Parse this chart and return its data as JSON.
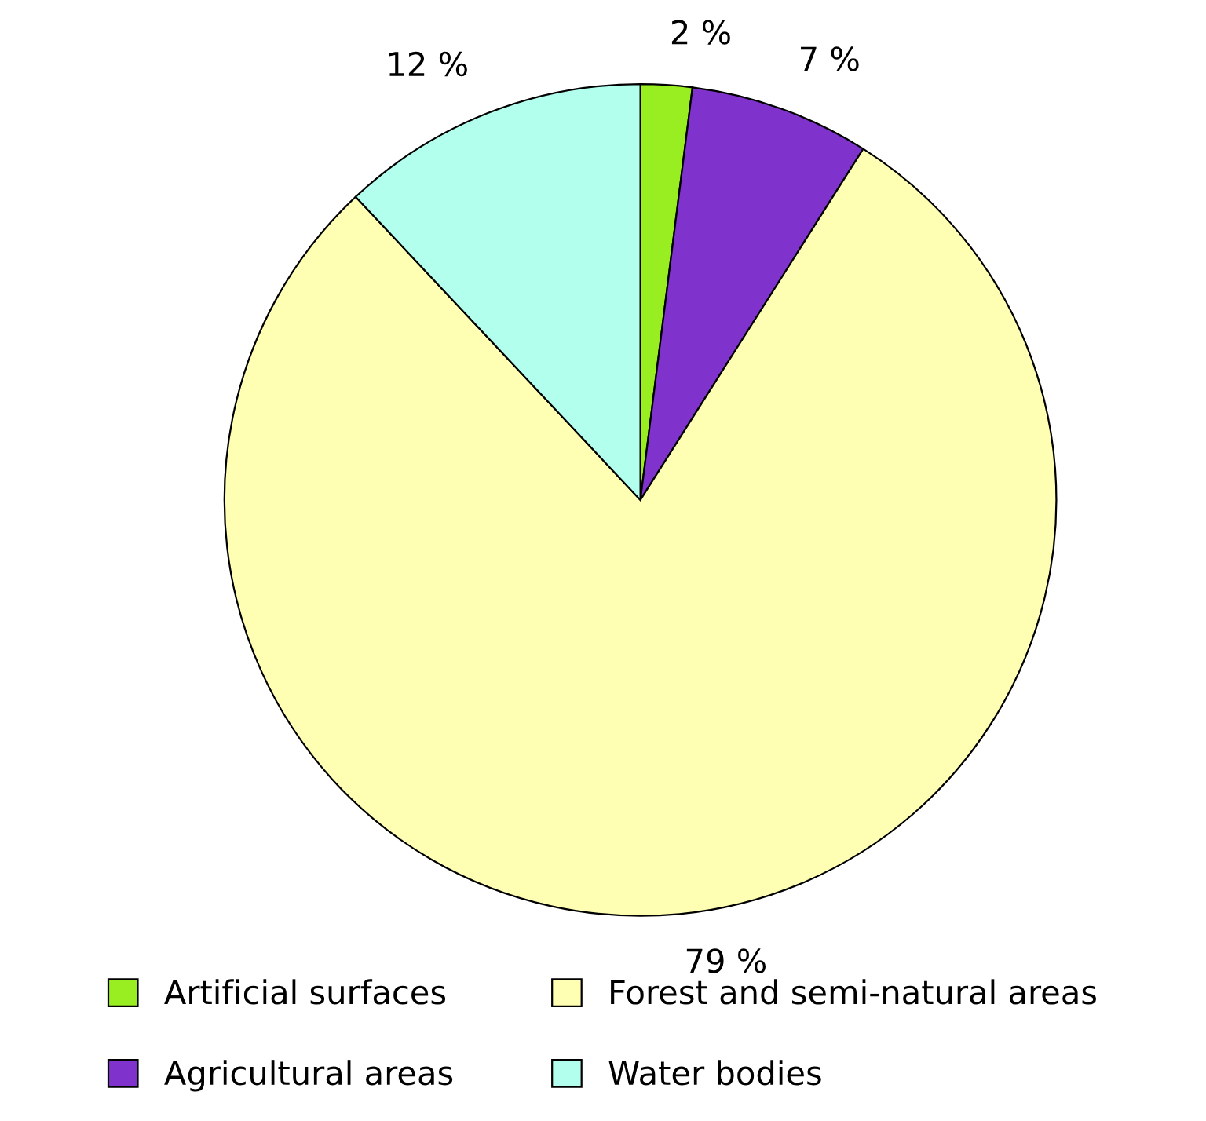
{
  "chart_data": {
    "type": "pie",
    "categories": [
      "Artificial surfaces",
      "Agricultural areas",
      "Forest and semi-natural areas",
      "Water bodies"
    ],
    "values": [
      2,
      7,
      79,
      12
    ],
    "colors": [
      "#99ee22",
      "#8033cc",
      "#ffffb3",
      "#b3ffee"
    ],
    "value_labels": [
      "2 %",
      "7 %",
      "79 %",
      "12 %"
    ],
    "legend": "bottom"
  }
}
